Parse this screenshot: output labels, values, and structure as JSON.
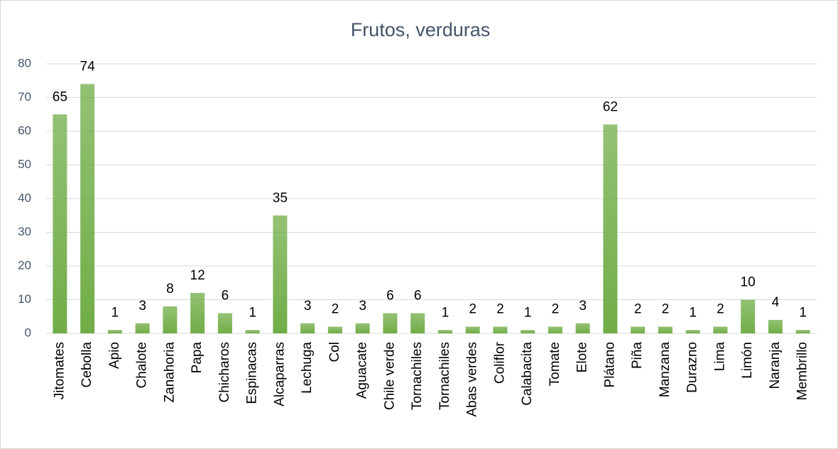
{
  "chart_data": {
    "type": "bar",
    "title": "Frutos, verduras",
    "categories": [
      "Jitomates",
      "Cebolla",
      "Apio",
      "Chalote",
      "Zanahoria",
      "Papa",
      "Chicharos",
      "Espinacas",
      "Alcaparras",
      "Lechuga",
      "Col",
      "Aguacate",
      "Chile verde",
      "Tornachiles",
      "Tornachiles",
      "Abas verdes",
      "Coliflor",
      "Calabacita",
      "Tomate",
      "Elote",
      "Plátano",
      "Piña",
      "Manzana",
      "Durazno",
      "Lima",
      "Limón",
      "Naranja",
      "Membrillo"
    ],
    "values": [
      65,
      74,
      1,
      3,
      8,
      12,
      6,
      1,
      35,
      3,
      2,
      3,
      6,
      6,
      1,
      2,
      2,
      1,
      2,
      3,
      62,
      2,
      2,
      1,
      2,
      10,
      4,
      1
    ],
    "color": "#70ad47",
    "ylim": [
      0,
      80
    ],
    "yticks": [
      0,
      10,
      20,
      30,
      40,
      50,
      60,
      70,
      80
    ],
    "grid": true
  }
}
